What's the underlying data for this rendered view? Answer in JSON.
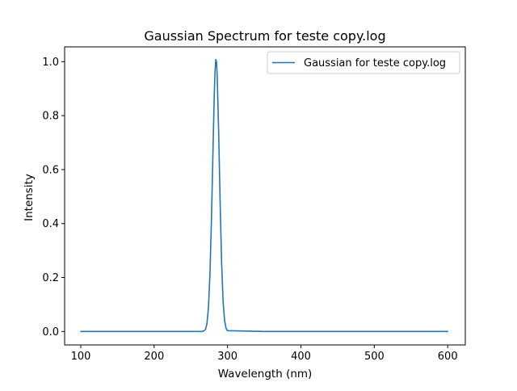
{
  "chart_data": {
    "type": "line",
    "title": "Gaussian Spectrum for teste copy.log",
    "xlabel": "Wavelength (nm)",
    "ylabel": "Intensity",
    "xlim": [
      78,
      624
    ],
    "ylim": [
      -0.05,
      1.055
    ],
    "x_ticks": [
      100,
      200,
      300,
      400,
      500,
      600
    ],
    "y_ticks": [
      0.0,
      0.2,
      0.4,
      0.6,
      0.8,
      1.0
    ],
    "x_tick_labels": [
      "100",
      "200",
      "300",
      "400",
      "500",
      "600"
    ],
    "y_tick_labels": [
      "0.0",
      "0.2",
      "0.4",
      "0.6",
      "0.8",
      "1.0"
    ],
    "grid": false,
    "legend_position": "top-right",
    "series": [
      {
        "name": "Gaussian for teste copy.log",
        "color": "#1f77b4",
        "x": [
          100,
          150,
          200,
          250,
          265,
          268,
          270,
          272,
          274,
          276,
          278,
          280,
          281,
          282,
          283,
          284,
          285,
          286,
          288,
          290,
          292,
          294,
          296,
          298,
          300,
          350,
          400,
          450,
          500,
          550,
          600
        ],
        "y": [
          0.0,
          0.0,
          0.0,
          0.0,
          0.0,
          0.002,
          0.008,
          0.03,
          0.088,
          0.209,
          0.406,
          0.647,
          0.774,
          0.886,
          0.968,
          1.008,
          0.999,
          0.942,
          0.727,
          0.467,
          0.249,
          0.11,
          0.04,
          0.012,
          0.003,
          0.0,
          0.0,
          0.0,
          0.0,
          0.0,
          0.0
        ]
      }
    ]
  }
}
